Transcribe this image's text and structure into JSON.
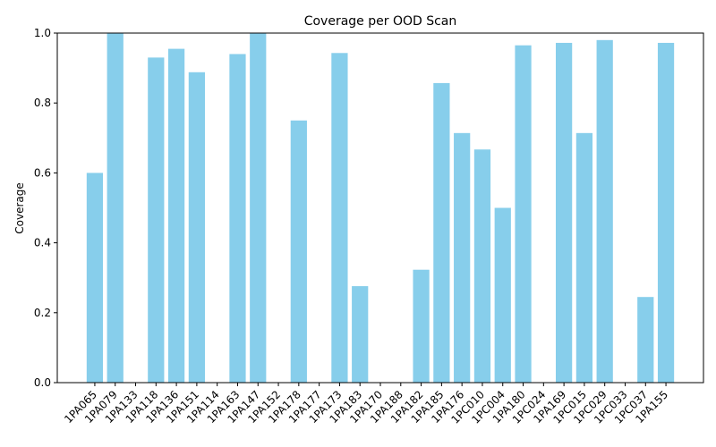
{
  "chart_data": {
    "type": "bar",
    "title": "Coverage per OOD Scan",
    "xlabel": "",
    "ylabel": "Coverage",
    "ylim": [
      0,
      1.0
    ],
    "yticks": [
      "0.0",
      "0.2",
      "0.4",
      "0.6",
      "0.8",
      "1.0"
    ],
    "bar_color": "#87ceeb",
    "grid": false,
    "categories": [
      "1PA065",
      "1PA079",
      "1PA133",
      "1PA118",
      "1PA136",
      "1PA151",
      "1PA114",
      "1PA163",
      "1PA147",
      "1PA152",
      "1PA178",
      "1PA177",
      "1PA173",
      "1PA183",
      "1PA170",
      "1PA188",
      "1PA182",
      "1PA185",
      "1PA176",
      "1PC010",
      "1PC004",
      "1PA180",
      "1PC024",
      "1PA169",
      "1PC015",
      "1PC029",
      "1PC033",
      "1PC037",
      "1PA155"
    ],
    "values": [
      0.6,
      1.0,
      0.0,
      0.93,
      0.955,
      0.888,
      0.0,
      0.94,
      1.0,
      0.0,
      0.75,
      0.0,
      0.943,
      0.276,
      0.0,
      0.0,
      0.323,
      0.857,
      0.714,
      0.667,
      0.5,
      0.965,
      0.0,
      0.972,
      0.714,
      0.98,
      0.0,
      0.245,
      0.972
    ]
  }
}
